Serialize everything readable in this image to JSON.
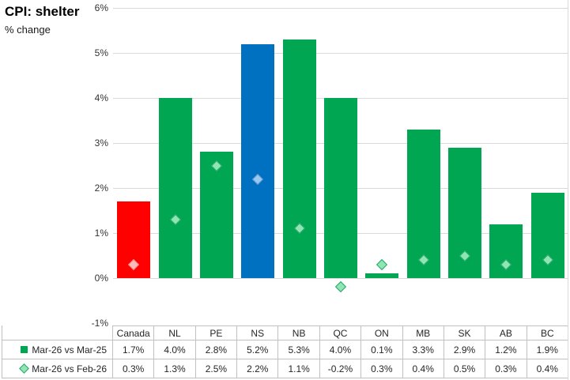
{
  "title": "CPI: shelter",
  "subtitle": "% change",
  "colors": {
    "grid": "#D9D9D9",
    "table_border": "#C0C0C0",
    "axis_text": "#333333",
    "table_text": "#262626",
    "bar_green": "#00A651",
    "bar_red": "#FF0000",
    "bar_blue": "#0070C0"
  },
  "chart_data": {
    "type": "bar",
    "title": "CPI: shelter",
    "ylabel": "% change",
    "categories": [
      "Canada",
      "NL",
      "PE",
      "NS",
      "NB",
      "QC",
      "ON",
      "MB",
      "SK",
      "AB",
      "BC"
    ],
    "series": [
      {
        "name": "Mar-26 vs Mar-25",
        "type": "bar",
        "values": [
          1.7,
          4.0,
          2.8,
          5.2,
          5.3,
          4.0,
          0.1,
          3.3,
          2.9,
          1.2,
          1.9
        ],
        "colors": [
          "#FF0000",
          "#00A651",
          "#00A651",
          "#0070C0",
          "#00A651",
          "#00A651",
          "#00A651",
          "#00A651",
          "#00A651",
          "#00A651",
          "#00A651"
        ]
      },
      {
        "name": "Mar-26 vs Feb-26",
        "type": "scatter",
        "marker": "diamond",
        "values": [
          0.3,
          1.3,
          2.5,
          2.2,
          1.1,
          -0.2,
          0.3,
          0.4,
          0.5,
          0.3,
          0.4
        ],
        "marker_styles": [
          {
            "fill": "#F7BCBC",
            "stroke": "#EE8A8A"
          },
          {
            "fill": "#8FE6B2",
            "stroke": "#26A66B"
          },
          {
            "fill": "#8FE6B2",
            "stroke": "#26A66B"
          },
          {
            "fill": "#9CC7EE",
            "stroke": "#5B9BD5"
          },
          {
            "fill": "#8FE6B2",
            "stroke": "#26A66B"
          },
          {
            "fill": "#8FE6B2",
            "stroke": "#26A66B"
          },
          {
            "fill": "#8FE6B2",
            "stroke": "#26A66B"
          },
          {
            "fill": "#8FE6B2",
            "stroke": "#26A66B"
          },
          {
            "fill": "#8FE6B2",
            "stroke": "#26A66B"
          },
          {
            "fill": "#8FE6B2",
            "stroke": "#26A66B"
          },
          {
            "fill": "#8FE6B2",
            "stroke": "#26A66B"
          }
        ]
      }
    ],
    "ylim": [
      -1,
      6
    ],
    "yticks": [
      6,
      5,
      4,
      3,
      2,
      1,
      0,
      -1
    ],
    "ytick_labels": [
      "6%",
      "5%",
      "4%",
      "3%",
      "2%",
      "1%",
      "0%",
      "-1%"
    ],
    "grid": true,
    "legend_position": "table-left"
  },
  "table": {
    "headers": [
      "Canada",
      "NL",
      "PE",
      "NS",
      "NB",
      "QC",
      "ON",
      "MB",
      "SK",
      "AB",
      "BC"
    ],
    "rows": [
      {
        "legend": "Mar-26 vs Mar-25",
        "key": "square",
        "values": [
          "1.7%",
          "4.0%",
          "2.8%",
          "5.2%",
          "5.3%",
          "4.0%",
          "0.1%",
          "3.3%",
          "2.9%",
          "1.2%",
          "1.9%"
        ]
      },
      {
        "legend": "Mar-26 vs Feb-26",
        "key": "diamond",
        "values": [
          "0.3%",
          "1.3%",
          "2.5%",
          "2.2%",
          "1.1%",
          "-0.2%",
          "0.3%",
          "0.4%",
          "0.5%",
          "0.3%",
          "0.4%"
        ]
      }
    ]
  }
}
